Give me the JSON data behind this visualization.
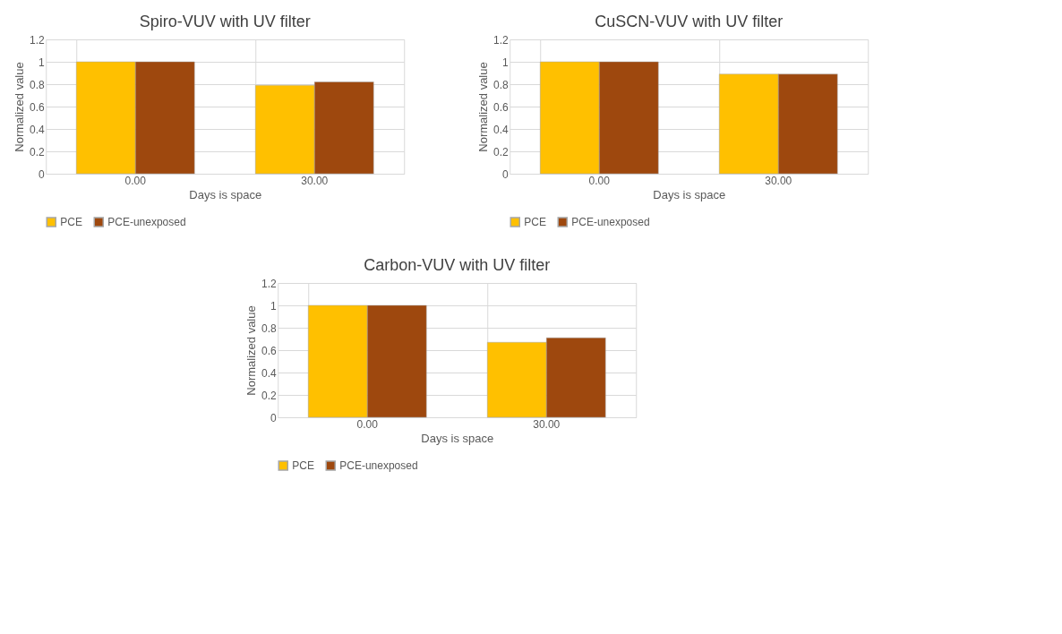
{
  "chart_data": [
    {
      "type": "bar",
      "title": "Spiro-VUV with UV filter",
      "xlabel": "Days is space",
      "ylabel": "Normalized value",
      "categories": [
        "0.00",
        "30.00"
      ],
      "series": [
        {
          "name": "PCE",
          "color": "#ffc000",
          "values": [
            1,
            0.79
          ]
        },
        {
          "name": "PCE-unexposed",
          "color": "#9e480e",
          "values": [
            1,
            0.82
          ]
        }
      ],
      "ylim": [
        0,
        1.2
      ],
      "yticks": [
        0,
        0.2,
        0.4,
        0.6,
        0.8,
        1,
        1.2
      ],
      "grid": true,
      "legend": "bottom"
    },
    {
      "type": "bar",
      "title": "CuSCN-VUV with UV filter",
      "xlabel": "Days is space",
      "ylabel": "Normalized value",
      "categories": [
        "0.00",
        "30.00"
      ],
      "series": [
        {
          "name": "PCE",
          "color": "#ffc000",
          "values": [
            1,
            0.89
          ]
        },
        {
          "name": "PCE-unexposed",
          "color": "#9e480e",
          "values": [
            1,
            0.89
          ]
        }
      ],
      "ylim": [
        0,
        1.2
      ],
      "yticks": [
        0,
        0.2,
        0.4,
        0.6,
        0.8,
        1,
        1.2
      ],
      "grid": true,
      "legend": "bottom"
    },
    {
      "type": "bar",
      "title": "Carbon-VUV with UV filter",
      "xlabel": "Days is space",
      "ylabel": "Normalized value",
      "categories": [
        "0.00",
        "30.00"
      ],
      "series": [
        {
          "name": "PCE",
          "color": "#ffc000",
          "values": [
            1,
            0.67
          ]
        },
        {
          "name": "PCE-unexposed",
          "color": "#9e480e",
          "values": [
            1,
            0.71
          ]
        }
      ],
      "ylim": [
        0,
        1.2
      ],
      "yticks": [
        0,
        0.2,
        0.4,
        0.6,
        0.8,
        1,
        1.2
      ],
      "grid": true,
      "legend": "bottom"
    }
  ]
}
